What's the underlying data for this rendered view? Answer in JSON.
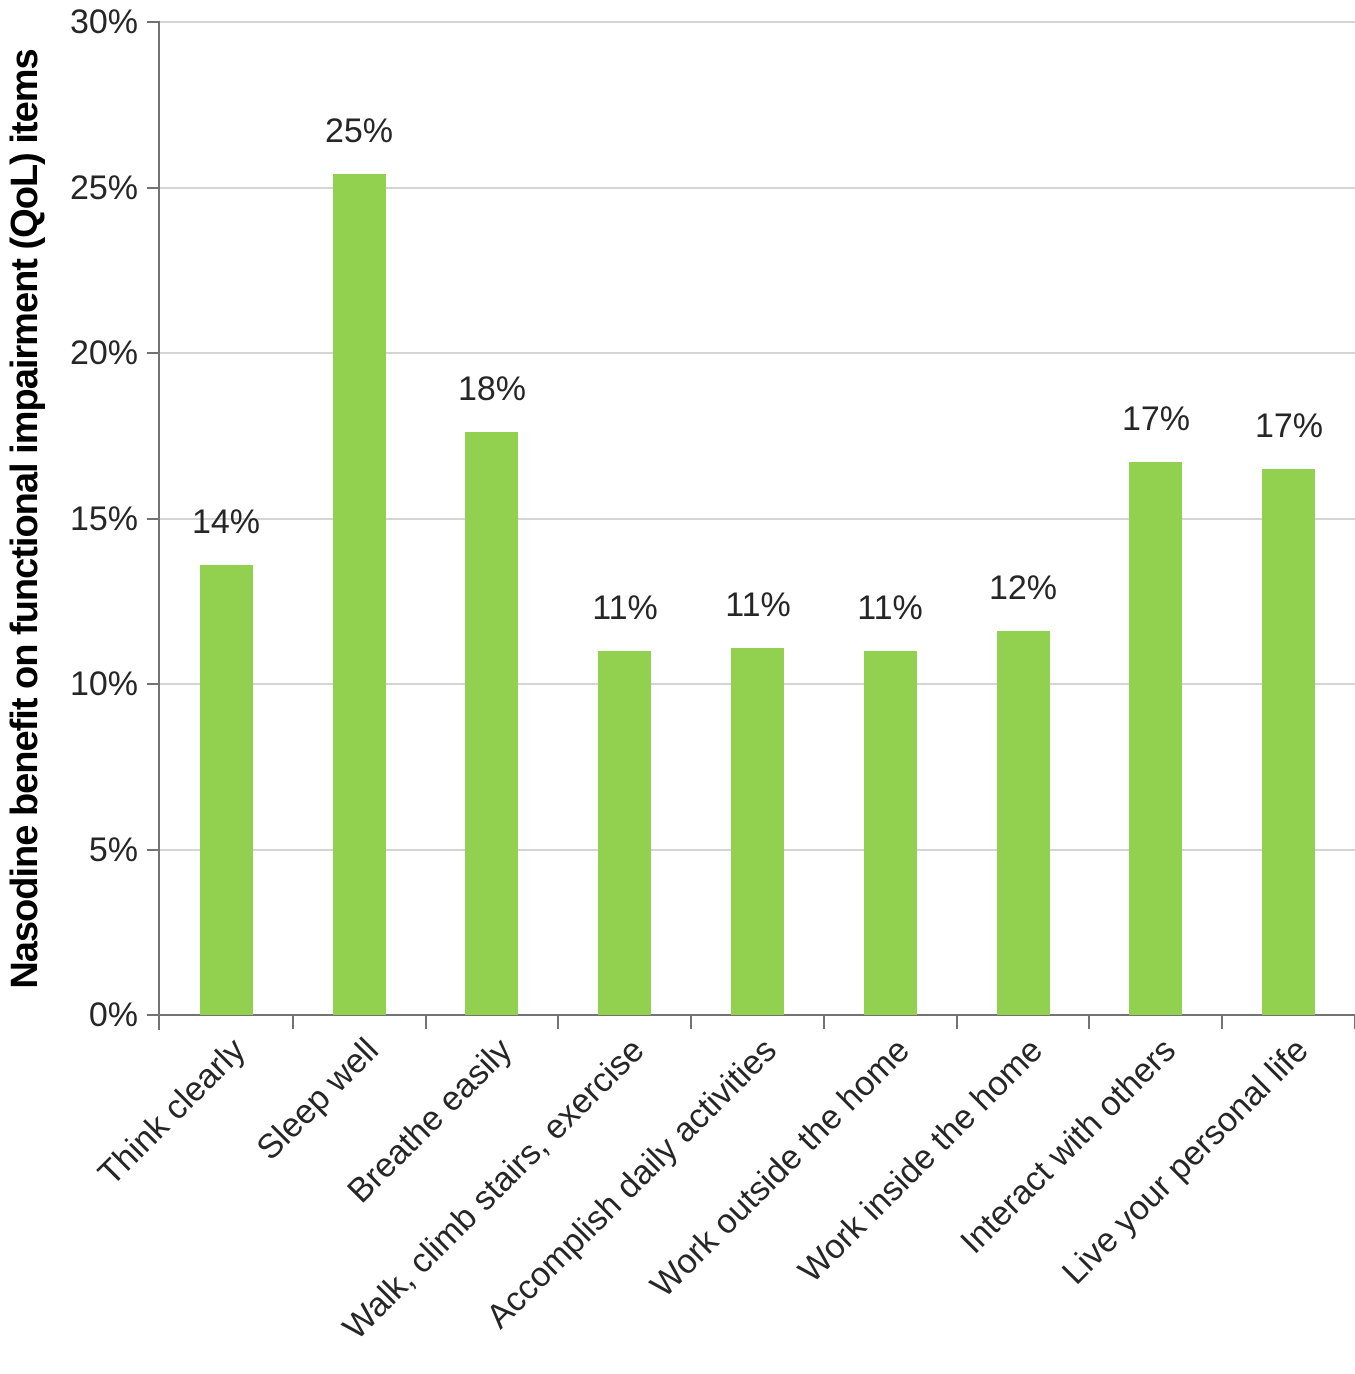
{
  "chart_data": {
    "type": "bar",
    "title": "",
    "xlabel": "",
    "ylabel": "Nasodine benefit on functional impairment (QoL) items",
    "ylim": [
      0,
      30
    ],
    "ytick_step": 5,
    "ytick_labels": [
      "0%",
      "5%",
      "10%",
      "15%",
      "20%",
      "25%",
      "30%"
    ],
    "grid": true,
    "legend_position": "none",
    "categories": [
      "Think clearly",
      "Sleep well",
      "Breathe easily",
      "Walk, climb stairs, exercise",
      "Accomplish daily activities",
      "Work outside the home",
      "Work inside the home",
      "Interact with others",
      "Live your personal life"
    ],
    "values": [
      13.6,
      25.4,
      17.6,
      11.0,
      11.1,
      11.0,
      11.6,
      16.7,
      16.5
    ],
    "data_labels": [
      "14%",
      "25%",
      "18%",
      "11%",
      "11%",
      "11%",
      "12%",
      "17%",
      "17%"
    ]
  },
  "colors": {
    "bar": "#92d050",
    "axis": "#737373",
    "gridline": "#d4d4d4",
    "label": "#262626",
    "title": "#000000",
    "background": "#ffffff"
  }
}
